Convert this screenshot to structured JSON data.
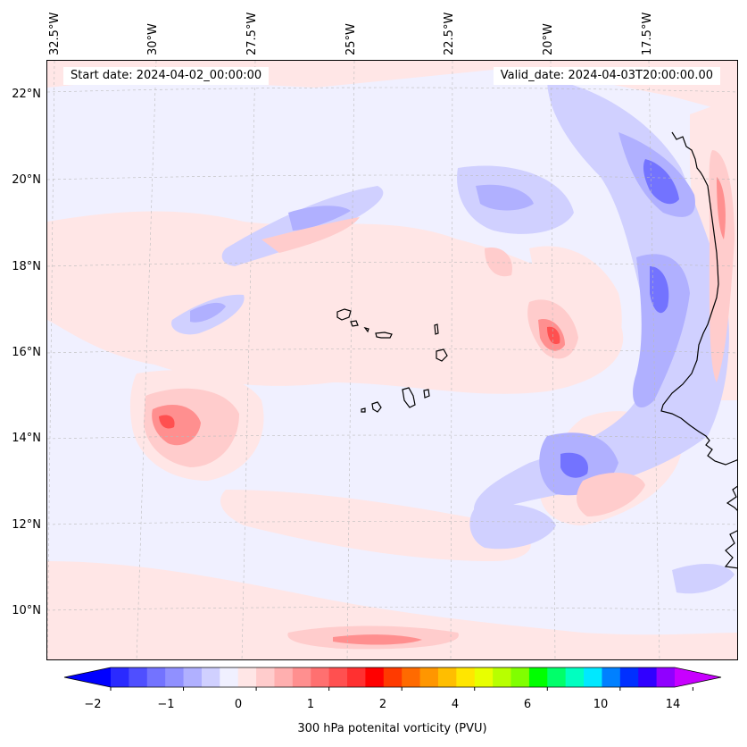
{
  "header": {
    "start_date": "Start date: 2024-04-02_00:00:00",
    "valid_date": "Valid_date: 2024-04-03T20:00:00.00"
  },
  "axes": {
    "longitude_labels": [
      "32.5°W",
      "30°W",
      "27.5°W",
      "25°W",
      "22.5°W",
      "20°W",
      "17.5°W"
    ],
    "latitude_labels": [
      "22°N",
      "20°N",
      "18°N",
      "16°N",
      "14°N",
      "12°N",
      "10°N"
    ]
  },
  "map": {
    "region": "Cape Verde and West African coast",
    "lon_range": [
      -33,
      -15.3
    ],
    "lat_range": [
      8.9,
      22.8
    ]
  },
  "colorbar": {
    "title": "300 hPa potenital vorticity (PVU)",
    "tick_labels": [
      "−2",
      "−1",
      "0",
      "1",
      "2",
      "4",
      "6",
      "10",
      "14"
    ],
    "colors": [
      "#0000ff",
      "#2a2aff",
      "#4f4fff",
      "#7373ff",
      "#9090ff",
      "#b0b0ff",
      "#d0d0ff",
      "#f0f0ff",
      "#ffe6e6",
      "#ffcccc",
      "#ffafaf",
      "#ff8f8f",
      "#ff7070",
      "#ff5050",
      "#ff3030",
      "#ff0000",
      "#ff3a00",
      "#ff6a00",
      "#ff9600",
      "#ffbe00",
      "#ffe600",
      "#e8ff00",
      "#b8ff00",
      "#80ff00",
      "#00ff00",
      "#00ff6a",
      "#00ffc0",
      "#00e8ff",
      "#0080ff",
      "#0030ff",
      "#3000ff",
      "#9000ff",
      "#c800ff"
    ],
    "extend": "both"
  }
}
